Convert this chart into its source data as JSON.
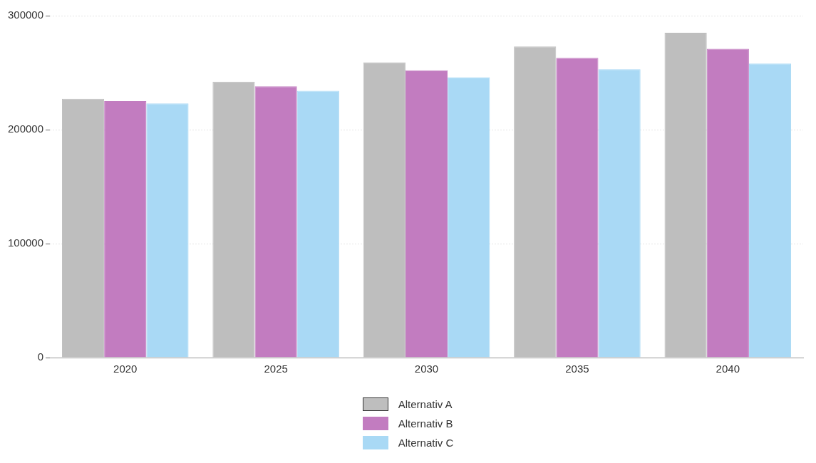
{
  "chart_data": {
    "type": "bar",
    "categories": [
      "2020",
      "2025",
      "2030",
      "2035",
      "2040"
    ],
    "series": [
      {
        "name": "Alternativ A",
        "color": "#bebebe",
        "values": [
          227000,
          242000,
          259000,
          273000,
          285000
        ]
      },
      {
        "name": "Alternativ B",
        "color": "#c27cc0",
        "values": [
          225000,
          238000,
          252000,
          263000,
          271000
        ]
      },
      {
        "name": "Alternativ C",
        "color": "#a9d9f5",
        "values": [
          223000,
          234000,
          246000,
          253000,
          258000
        ]
      }
    ],
    "ylim": [
      0,
      300000
    ],
    "yticks": [
      0,
      100000,
      200000,
      300000
    ],
    "grid": "y",
    "legend": "bottom"
  }
}
